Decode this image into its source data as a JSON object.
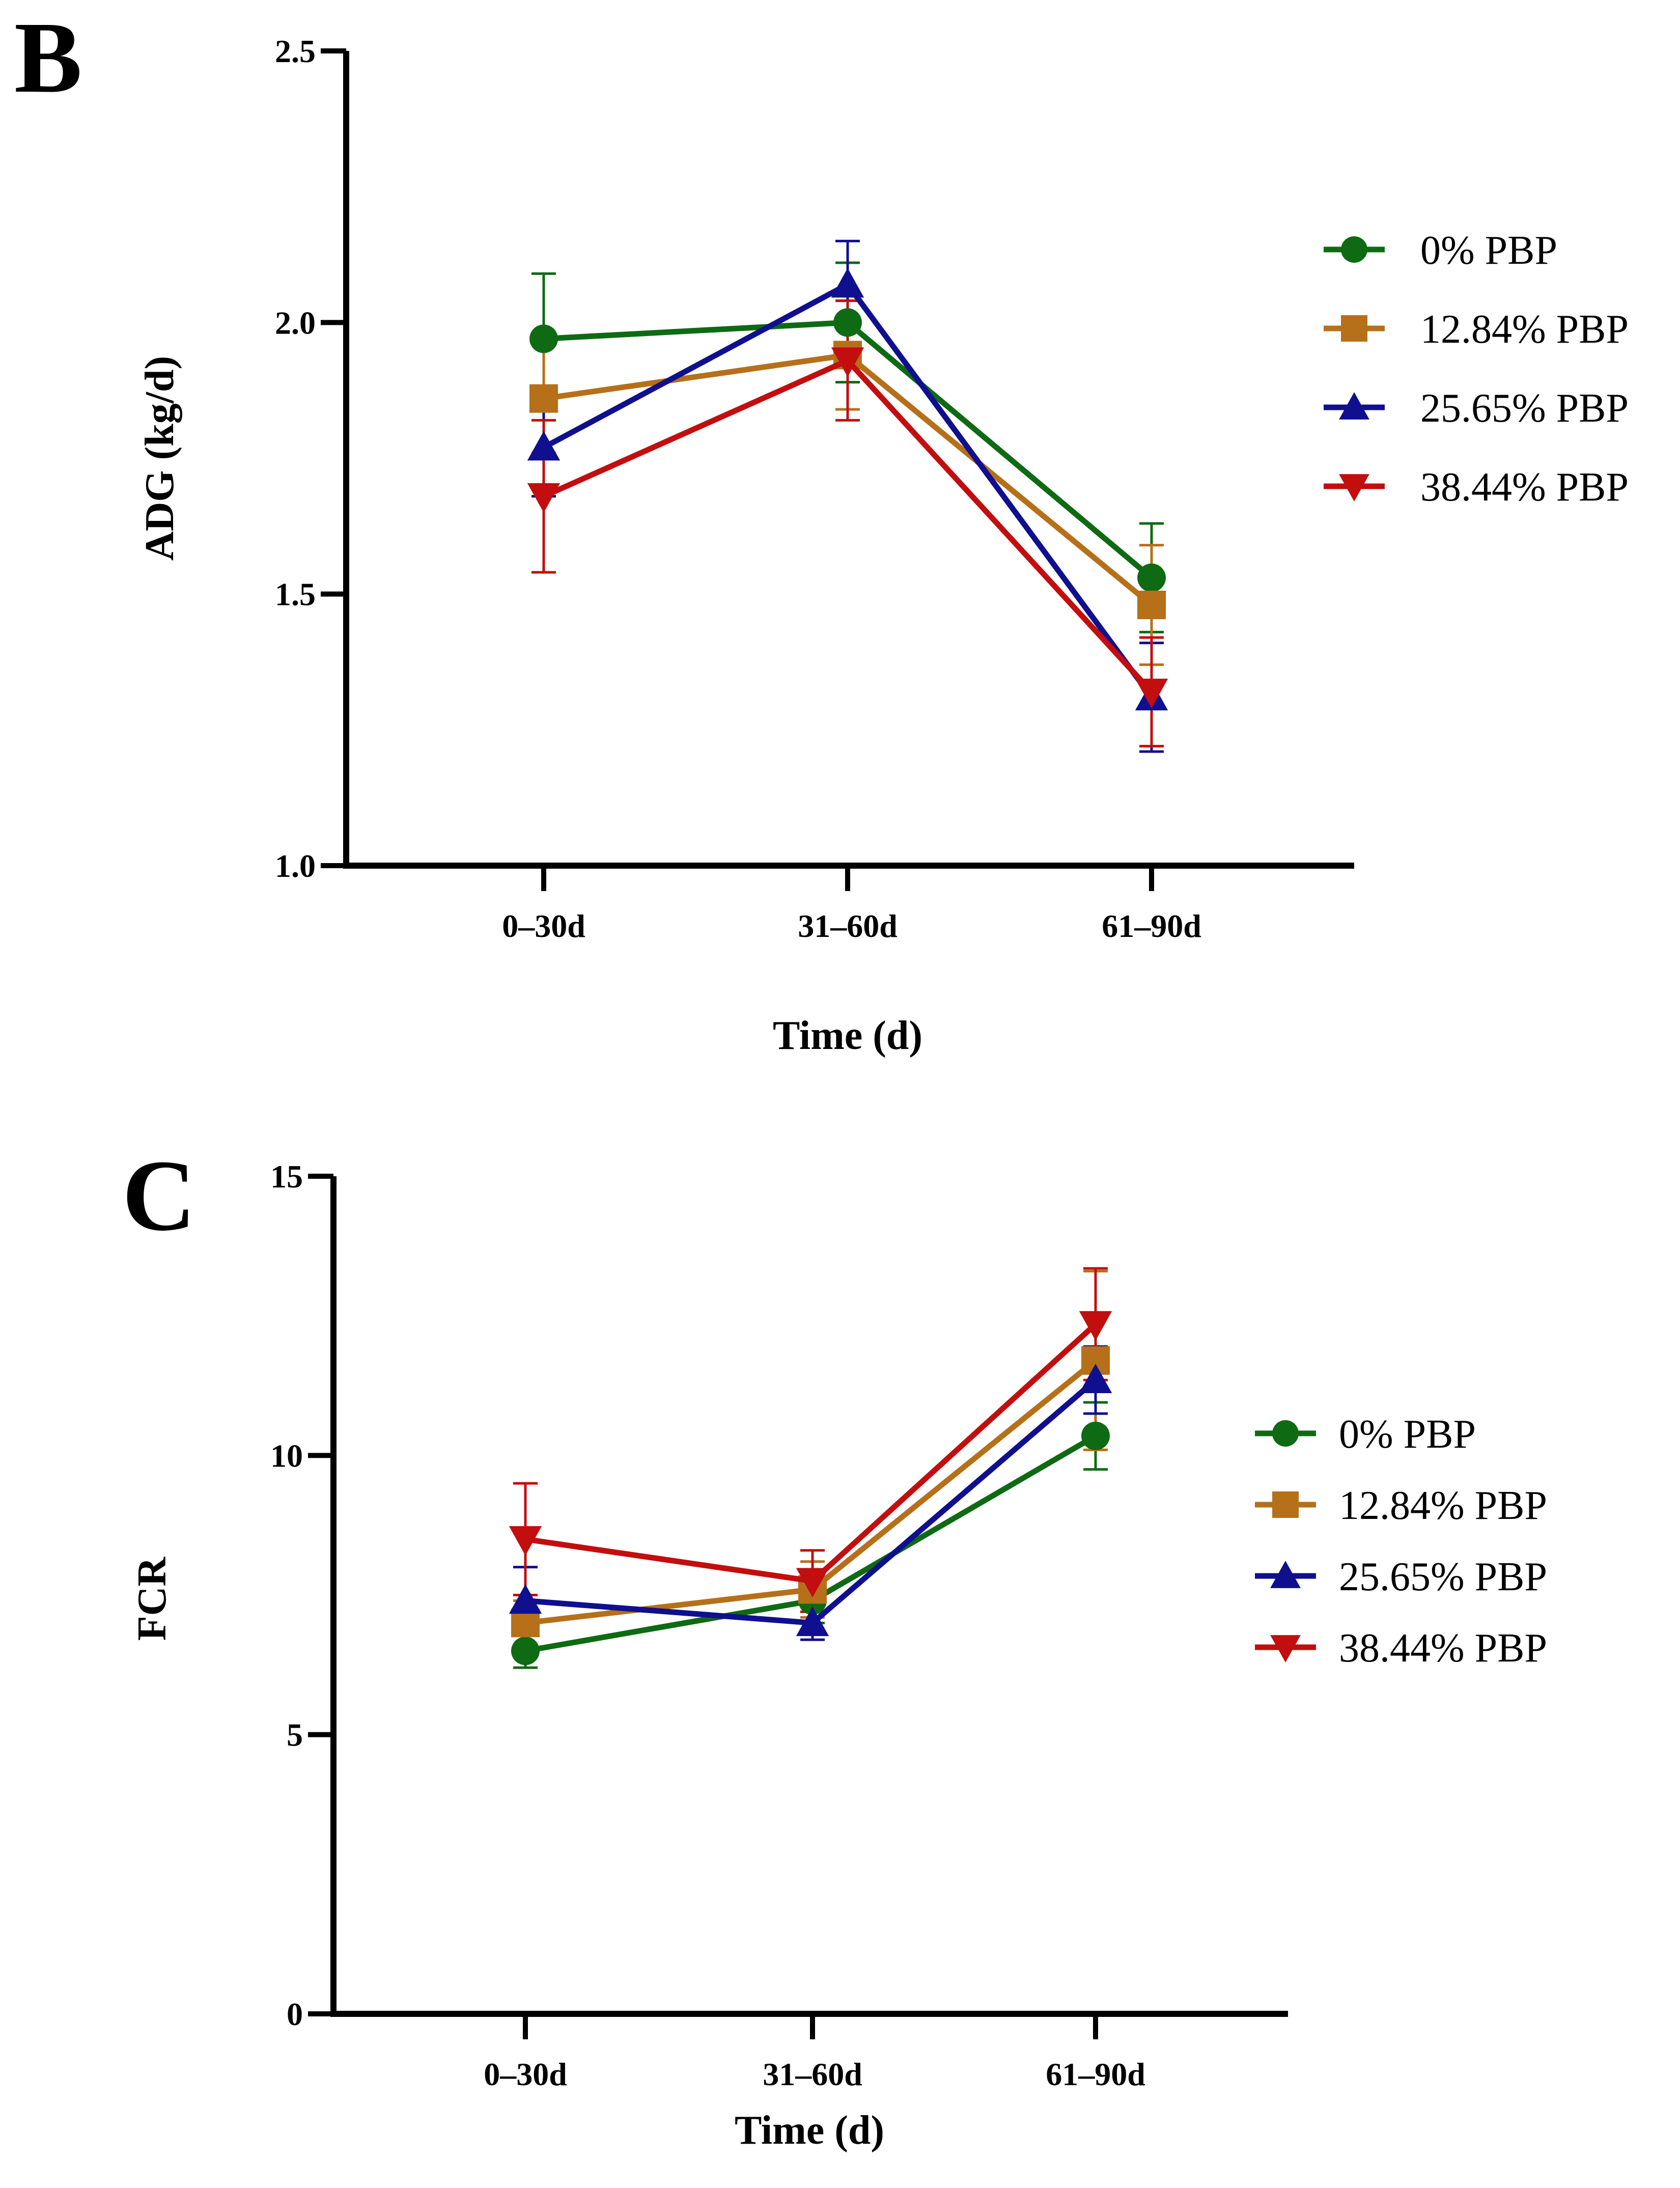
{
  "figure": {
    "colors": {
      "axis": "#000000"
    }
  },
  "chart_data": [
    {
      "panel": "B",
      "type": "line",
      "categories": [
        "0–30d",
        "31–60d",
        "61–90d"
      ],
      "xlabel": "Time (d)",
      "ylabel": "ADG (kg/d)",
      "ylim": [
        1.0,
        2.5
      ],
      "yticks": [
        1.0,
        1.5,
        2.0,
        2.5
      ],
      "ytick_labels": [
        "1.0",
        "1.5",
        "2.0",
        "2.5"
      ],
      "grid": false,
      "legend_position": "right",
      "error_bars": true,
      "series": [
        {
          "name": "0% PBP",
          "color": "#0E6A13",
          "marker": "circle",
          "values": [
            1.97,
            2.0,
            1.53
          ],
          "errors": [
            0.12,
            0.11,
            0.1
          ]
        },
        {
          "name": "12.84% PBP",
          "color": "#B57019",
          "marker": "square",
          "values": [
            1.86,
            1.94,
            1.48
          ],
          "errors": [
            0.1,
            0.1,
            0.11
          ]
        },
        {
          "name": "25.65% PBP",
          "color": "#0F0F8F",
          "marker": "triangle-up",
          "values": [
            1.77,
            2.07,
            1.31
          ],
          "errors": [
            0.09,
            0.08,
            0.1
          ]
        },
        {
          "name": "38.44% PBP",
          "color": "#C20E0E",
          "marker": "triangle-down",
          "values": [
            1.68,
            1.93,
            1.32
          ],
          "errors": [
            0.14,
            0.11,
            0.1
          ]
        }
      ]
    },
    {
      "panel": "C",
      "type": "line",
      "categories": [
        "0–30d",
        "31–60d",
        "61–90d"
      ],
      "xlabel": "Time (d)",
      "ylabel": "FCR",
      "ylim": [
        0,
        15
      ],
      "yticks": [
        0,
        5,
        10,
        15
      ],
      "ytick_labels": [
        "0",
        "5",
        "10",
        "15"
      ],
      "grid": false,
      "legend_position": "right",
      "error_bars": true,
      "series": [
        {
          "name": "0% PBP",
          "color": "#0E6A13",
          "marker": "circle",
          "values": [
            6.5,
            7.4,
            10.35
          ],
          "errors": [
            0.3,
            0.4,
            0.6
          ]
        },
        {
          "name": "12.84% PBP",
          "color": "#B57019",
          "marker": "square",
          "values": [
            7.0,
            7.6,
            11.7
          ],
          "errors": [
            0.4,
            0.5,
            1.6
          ]
        },
        {
          "name": "25.65% PBP",
          "color": "#0F0F8F",
          "marker": "triangle-up",
          "values": [
            7.4,
            7.0,
            11.35
          ],
          "errors": [
            0.6,
            0.3,
            0.6
          ]
        },
        {
          "name": "38.44% PBP",
          "color": "#C20E0E",
          "marker": "triangle-down",
          "values": [
            8.5,
            7.75,
            12.35
          ],
          "errors": [
            1.0,
            0.55,
            1.0
          ]
        }
      ]
    }
  ]
}
